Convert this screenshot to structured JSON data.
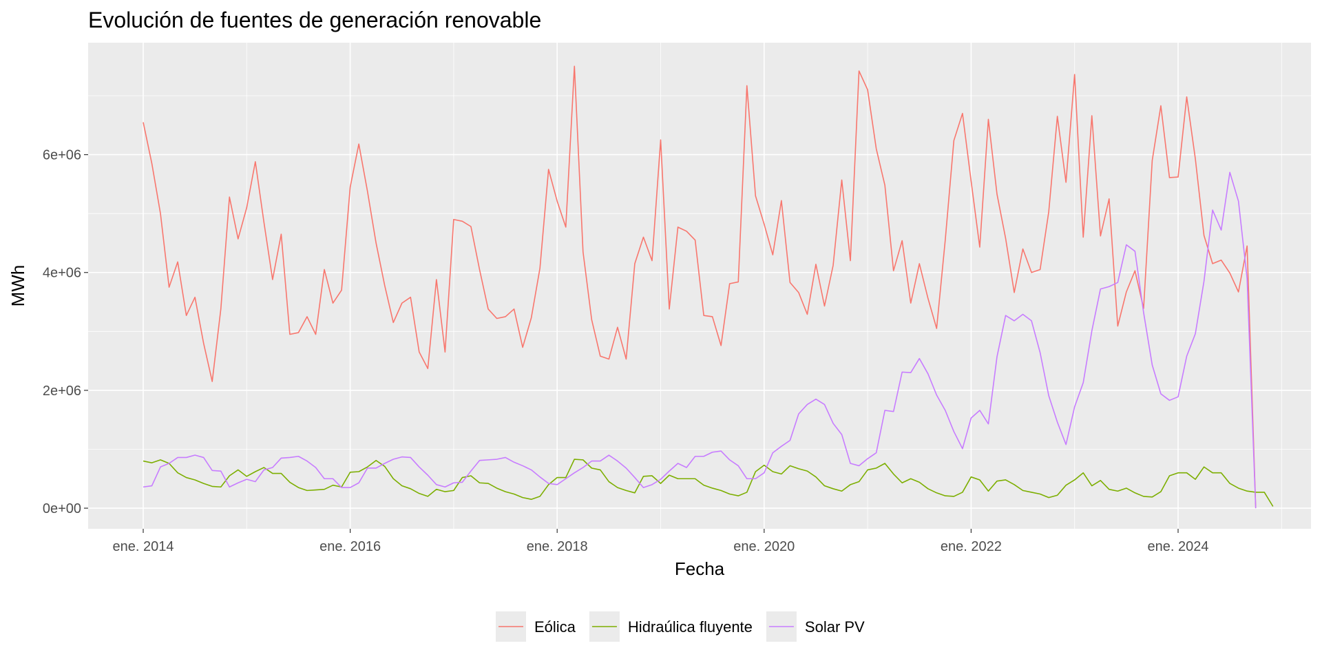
{
  "chart_data": {
    "type": "line",
    "title": "Evolución de fuentes de generación renovable",
    "xlabel": "Fecha",
    "ylabel": "MWh",
    "x_axis": {
      "type": "date",
      "start": "2014-01",
      "ticks": [
        {
          "date": "2014-01",
          "label": "ene. 2014"
        },
        {
          "date": "2016-01",
          "label": "ene. 2016"
        },
        {
          "date": "2018-01",
          "label": "ene. 2018"
        },
        {
          "date": "2020-01",
          "label": "ene. 2020"
        },
        {
          "date": "2022-01",
          "label": "ene. 2022"
        },
        {
          "date": "2024-01",
          "label": "ene. 2024"
        }
      ]
    },
    "ylim": [
      -350000,
      7900000
    ],
    "y_ticks": [
      {
        "value": 0,
        "label": "0e+00"
      },
      {
        "value": 2000000,
        "label": "2e+06"
      },
      {
        "value": 4000000,
        "label": "4e+06"
      },
      {
        "value": 6000000,
        "label": "6e+06"
      }
    ],
    "grid": true,
    "legend_position": "bottom",
    "series": [
      {
        "name": "Eólica",
        "color": "#F8766D",
        "values": [
          6550000,
          5850000,
          5000000,
          3750000,
          4180000,
          3270000,
          3580000,
          2800000,
          2150000,
          3380000,
          5280000,
          4570000,
          5100000,
          5880000,
          4850000,
          3880000,
          4650000,
          2950000,
          2980000,
          3250000,
          2950000,
          4050000,
          3480000,
          3700000,
          5450000,
          6180000,
          5380000,
          4500000,
          3780000,
          3150000,
          3480000,
          3580000,
          2650000,
          2370000,
          3880000,
          2650000,
          4900000,
          4870000,
          4780000,
          4050000,
          3380000,
          3220000,
          3250000,
          3380000,
          2730000,
          3230000,
          4070000,
          5750000,
          5210000,
          4770000,
          7500000,
          4350000,
          3200000,
          2580000,
          2530000,
          3070000,
          2530000,
          4150000,
          4600000,
          4200000,
          6250000,
          3380000,
          4770000,
          4700000,
          4550000,
          3270000,
          3250000,
          2760000,
          3810000,
          3840000,
          7170000,
          5300000,
          4820000,
          4300000,
          5220000,
          3830000,
          3660000,
          3290000,
          4140000,
          3430000,
          4120000,
          5570000,
          4200000,
          7420000,
          7100000,
          6100000,
          5480000,
          4030000,
          4540000,
          3480000,
          4150000,
          3560000,
          3050000,
          4550000,
          6240000,
          6700000,
          5550000,
          4430000,
          6600000,
          5330000,
          4580000,
          3660000,
          4400000,
          4000000,
          4050000,
          5030000,
          6650000,
          5530000,
          7360000,
          4600000,
          6660000,
          4620000,
          5250000,
          3090000,
          3670000,
          4030000,
          3390000,
          5900000,
          6830000,
          5610000,
          5620000,
          6980000,
          5930000,
          4630000,
          4150000,
          4210000,
          3990000,
          3670000,
          4450000,
          0
        ]
      },
      {
        "name": "Hidraúlica fluyente",
        "color": "#7CAE00",
        "values": [
          800000,
          770000,
          820000,
          760000,
          600000,
          520000,
          480000,
          420000,
          370000,
          360000,
          550000,
          650000,
          540000,
          620000,
          690000,
          590000,
          590000,
          440000,
          350000,
          300000,
          310000,
          320000,
          390000,
          360000,
          610000,
          620000,
          700000,
          810000,
          710000,
          500000,
          380000,
          330000,
          250000,
          200000,
          320000,
          280000,
          300000,
          520000,
          550000,
          430000,
          420000,
          340000,
          280000,
          240000,
          180000,
          150000,
          200000,
          400000,
          520000,
          520000,
          830000,
          820000,
          680000,
          650000,
          450000,
          350000,
          300000,
          260000,
          540000,
          550000,
          420000,
          560000,
          500000,
          500000,
          500000,
          390000,
          340000,
          300000,
          240000,
          210000,
          270000,
          620000,
          730000,
          620000,
          580000,
          720000,
          670000,
          630000,
          530000,
          380000,
          330000,
          290000,
          400000,
          450000,
          650000,
          680000,
          760000,
          580000,
          430000,
          500000,
          440000,
          330000,
          260000,
          210000,
          200000,
          270000,
          530000,
          480000,
          290000,
          460000,
          480000,
          400000,
          300000,
          270000,
          240000,
          180000,
          220000,
          390000,
          480000,
          600000,
          380000,
          470000,
          320000,
          290000,
          340000,
          260000,
          200000,
          190000,
          280000,
          550000,
          600000,
          600000,
          490000,
          700000,
          600000,
          600000,
          420000,
          340000,
          290000,
          270000,
          270000,
          30000
        ]
      },
      {
        "name": "Solar PV",
        "color": "#C77CFF",
        "values": [
          360000,
          380000,
          700000,
          760000,
          860000,
          860000,
          900000,
          860000,
          640000,
          630000,
          360000,
          430000,
          490000,
          450000,
          650000,
          690000,
          850000,
          860000,
          880000,
          800000,
          690000,
          500000,
          500000,
          350000,
          350000,
          430000,
          680000,
          680000,
          760000,
          830000,
          870000,
          860000,
          700000,
          560000,
          400000,
          360000,
          430000,
          440000,
          630000,
          810000,
          820000,
          830000,
          860000,
          780000,
          720000,
          650000,
          530000,
          420000,
          400000,
          500000,
          600000,
          690000,
          800000,
          800000,
          900000,
          800000,
          680000,
          520000,
          350000,
          400000,
          490000,
          630000,
          760000,
          690000,
          880000,
          880000,
          950000,
          970000,
          820000,
          720000,
          500000,
          500000,
          600000,
          940000,
          1050000,
          1150000,
          1600000,
          1760000,
          1850000,
          1760000,
          1440000,
          1250000,
          760000,
          720000,
          840000,
          940000,
          1660000,
          1640000,
          2310000,
          2300000,
          2540000,
          2280000,
          1920000,
          1660000,
          1300000,
          1010000,
          1530000,
          1660000,
          1430000,
          2570000,
          3270000,
          3180000,
          3290000,
          3180000,
          2640000,
          1910000,
          1460000,
          1080000,
          1720000,
          2130000,
          3010000,
          3720000,
          3760000,
          3830000,
          4470000,
          4360000,
          3320000,
          2430000,
          1940000,
          1830000,
          1890000,
          2580000,
          2960000,
          3850000,
          5060000,
          4720000,
          5700000,
          5210000,
          3900000,
          0
        ]
      }
    ]
  }
}
